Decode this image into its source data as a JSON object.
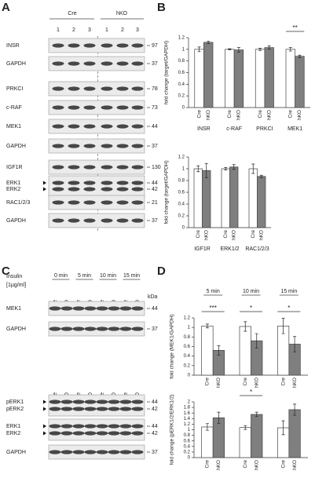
{
  "panel_a": {
    "label": "A",
    "conditions": [
      "Cre",
      "hKO"
    ],
    "lanes": [
      "1",
      "2",
      "3",
      "1",
      "2",
      "3"
    ],
    "rows": [
      {
        "labels": [
          "INSR"
        ],
        "kda": [
          97
        ]
      },
      {
        "labels": [
          "GAPDH"
        ],
        "kda": [
          37
        ]
      },
      {
        "labels": [
          "PRKCI"
        ],
        "kda": [
          78
        ]
      },
      {
        "labels": [
          "c-RAF"
        ],
        "kda": [
          73
        ]
      },
      {
        "labels": [
          "MEK1"
        ],
        "kda": [
          44
        ]
      },
      {
        "labels": [
          "GAPDH"
        ],
        "kda": [
          37
        ]
      },
      {
        "labels": [
          "IGF1R"
        ],
        "kda": [
          130
        ]
      },
      {
        "labels": [
          "ERK1",
          "ERK2"
        ],
        "kda": [
          44,
          42
        ]
      },
      {
        "labels": [
          "RAC1/2/3"
        ],
        "kda": [
          21
        ]
      },
      {
        "labels": [
          "GAPDH"
        ],
        "kda": [
          37
        ]
      }
    ]
  },
  "panel_b": {
    "label": "B"
  },
  "panel_c": {
    "label": "C",
    "treatment": [
      "Insulin",
      "[1µg/ml]"
    ],
    "times": [
      "0 min",
      "5 min",
      "10 min",
      "15 min"
    ],
    "lanes": [
      "Cre",
      "hKO",
      "Cre",
      "hKO",
      "Cre",
      "hKO",
      "Cre",
      "hKO"
    ],
    "kda_header": "kDa",
    "rows": [
      {
        "labels": [
          "MEK1"
        ],
        "kda": [
          44
        ]
      },
      {
        "labels": [
          "GAPDH"
        ],
        "kda": [
          37
        ]
      },
      {
        "labels": [
          "pERK1",
          "pERK2"
        ],
        "kda": [
          44,
          42
        ]
      },
      {
        "labels": [
          "ERK1",
          "ERK2"
        ],
        "kda": [
          44,
          42
        ]
      },
      {
        "labels": [
          "GAPDH"
        ],
        "kda": [
          37
        ]
      }
    ]
  },
  "panel_d": {
    "label": "D"
  },
  "chart_data": [
    {
      "type": "bar",
      "y_label": "fold change (target/GAPDH)",
      "categories": [
        "INSR",
        "c-RAF",
        "PRKCI",
        "MEK1"
      ],
      "category_labels": "bottom",
      "series": [
        {
          "name": "Cre",
          "color": "#ffffff",
          "values": [
            1.0,
            1.0,
            1.0,
            1.0
          ],
          "errors": [
            0.04,
            0.01,
            0.02,
            0.03
          ]
        },
        {
          "name": "hKO",
          "color": "#7f7f7f",
          "values": [
            1.12,
            0.99,
            1.03,
            0.88
          ],
          "errors": [
            0.02,
            0.04,
            0.03,
            0.02
          ]
        }
      ],
      "significance": [
        null,
        null,
        null,
        "**"
      ],
      "ylim": [
        0,
        1.2
      ],
      "yticks": [
        0,
        0.2,
        0.4,
        0.6,
        0.8,
        1,
        1.2
      ]
    },
    {
      "type": "bar",
      "y_label": "fold change (target/GAPDH)",
      "categories": [
        "IGF1R",
        "ERK1/2",
        "RAC1/2/3"
      ],
      "category_labels": "bottom",
      "series": [
        {
          "name": "Cre",
          "color": "#ffffff",
          "values": [
            1.0,
            1.0,
            1.0
          ],
          "errors": [
            0.05,
            0.02,
            0.08
          ]
        },
        {
          "name": "hKO",
          "color": "#7f7f7f",
          "values": [
            0.97,
            1.03,
            0.87
          ],
          "errors": [
            0.12,
            0.04,
            0.02
          ]
        }
      ],
      "ylim": [
        0,
        1.2
      ],
      "yticks": [
        0,
        0.2,
        0.4,
        0.6,
        0.8,
        1,
        1.2
      ]
    },
    {
      "type": "bar",
      "y_label": "fold change (MEK1/GAPDH)",
      "categories": [
        "5 min",
        "10 min",
        "15 min"
      ],
      "category_labels": "top",
      "series": [
        {
          "name": "Cre",
          "color": "#ffffff",
          "values": [
            1.03,
            1.02,
            1.03
          ],
          "errors": [
            0.04,
            0.1,
            0.16
          ]
        },
        {
          "name": "hKO",
          "color": "#7f7f7f",
          "values": [
            0.52,
            0.72,
            0.65
          ],
          "errors": [
            0.1,
            0.15,
            0.16
          ]
        }
      ],
      "significance": [
        "***",
        "*",
        "*"
      ],
      "ylim": [
        0,
        1.2
      ],
      "yticks": [
        0,
        0.2,
        0.4,
        0.6,
        0.8,
        1,
        1.2
      ]
    },
    {
      "type": "bar",
      "y_label": "fold change (pERK1/2/ERK1/2)",
      "categories": [
        null,
        null,
        null
      ],
      "series": [
        {
          "name": "Cre",
          "color": "#ffffff",
          "values": [
            1.1,
            1.08,
            1.07
          ],
          "errors": [
            0.12,
            0.07,
            0.25
          ]
        },
        {
          "name": "hKO",
          "color": "#7f7f7f",
          "values": [
            1.43,
            1.55,
            1.72
          ],
          "errors": [
            0.2,
            0.08,
            0.2
          ]
        }
      ],
      "significance": [
        null,
        "*",
        null
      ],
      "ylim": [
        0,
        2
      ],
      "yticks": [
        0,
        0.2,
        0.4,
        0.6,
        0.8,
        1,
        1.2,
        1.4,
        1.6,
        1.8,
        2
      ]
    }
  ]
}
